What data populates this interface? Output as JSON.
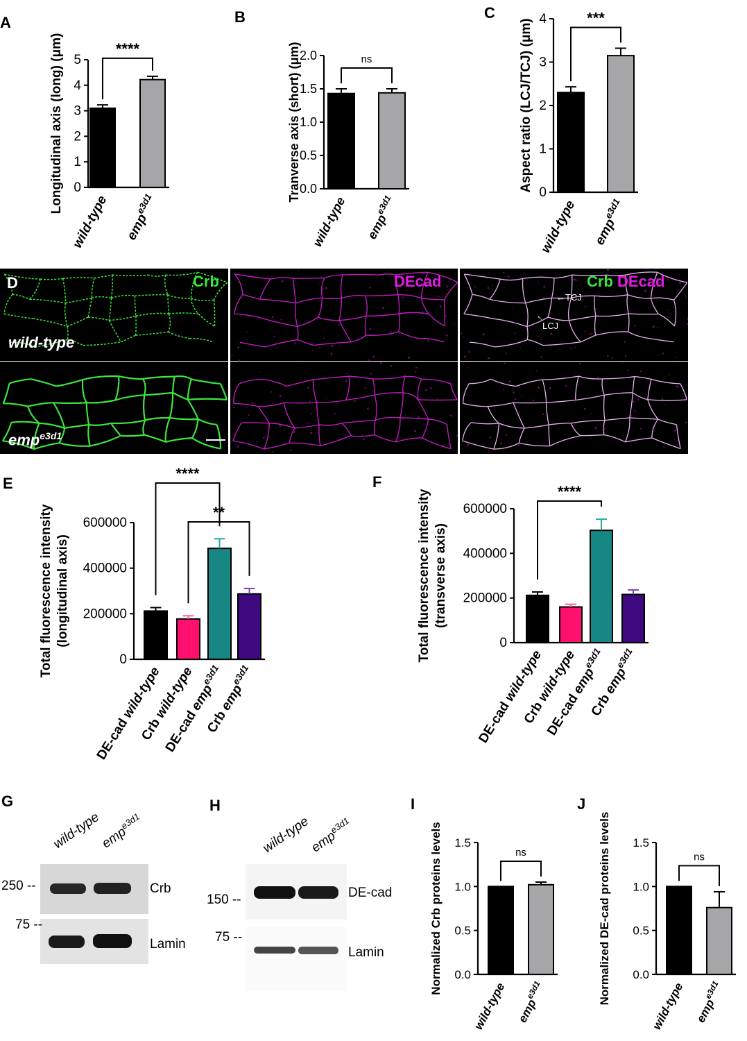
{
  "panel_letters": {
    "A": "A",
    "B": "B",
    "C": "C",
    "D": "D",
    "E": "E",
    "F": "F",
    "G": "G",
    "H": "H",
    "I": "I",
    "J": "J"
  },
  "colors": {
    "black": "#000000",
    "grey": "#a6a6a8",
    "pink": "#ff0f6e",
    "teal": "#168783",
    "purple": "#3e087f",
    "crb_green": "#3ce63c",
    "decad_magenta": "#e619e6",
    "errbar_black": "#000000",
    "errbar_pink": "#ff5c9a",
    "errbar_teal": "#2aa79f",
    "errbar_purple": "#7b43b8"
  },
  "chart_data": [
    {
      "id": "A",
      "type": "bar",
      "ylabel": "Longitudinal axis (long) (μm)",
      "ylim": [
        0,
        5
      ],
      "yticks": [
        "0",
        "1",
        "2",
        "3",
        "4",
        "5"
      ],
      "categories": [
        {
          "name": "wild-type",
          "sup": ""
        },
        {
          "name": "emp",
          "sup": "e3d1"
        }
      ],
      "values": [
        3.1,
        4.22
      ],
      "errors": [
        0.13,
        0.13
      ],
      "colors": [
        "black",
        "grey"
      ],
      "err_colors": [
        "errbar_black",
        "errbar_black"
      ],
      "significance": [
        {
          "from": 0,
          "to": 1,
          "label": "****",
          "big": true
        }
      ]
    },
    {
      "id": "B",
      "type": "bar",
      "ylabel": "Tranverse axis (short) (μm)",
      "ylim": [
        0,
        2
      ],
      "yticks": [
        "0.0",
        "0.5",
        "1.0",
        "1.5",
        "2.0"
      ],
      "categories": [
        {
          "name": "wild-type",
          "sup": ""
        },
        {
          "name": "emp",
          "sup": "e3d1"
        }
      ],
      "values": [
        1.43,
        1.44
      ],
      "errors": [
        0.07,
        0.06
      ],
      "colors": [
        "black",
        "grey"
      ],
      "err_colors": [
        "errbar_black",
        "errbar_black"
      ],
      "significance": [
        {
          "from": 0,
          "to": 1,
          "label": "ns",
          "big": false
        }
      ]
    },
    {
      "id": "C",
      "type": "bar",
      "ylabel": "Aspect ratio (LCJ/TCJ) (μm)",
      "ylim": [
        0,
        4
      ],
      "yticks": [
        "0",
        "1",
        "2",
        "3",
        "4"
      ],
      "categories": [
        {
          "name": "wild-type",
          "sup": ""
        },
        {
          "name": "emp",
          "sup": "e3d1"
        }
      ],
      "values": [
        2.3,
        3.15
      ],
      "errors": [
        0.13,
        0.17
      ],
      "colors": [
        "black",
        "grey"
      ],
      "err_colors": [
        "errbar_black",
        "errbar_black"
      ],
      "significance": [
        {
          "from": 0,
          "to": 1,
          "label": "***",
          "big": true
        }
      ]
    },
    {
      "id": "E",
      "type": "bar",
      "ylabel": "Total fluorescence intensity",
      "ylabel2": "(longitudinal axis)",
      "ylim": [
        0,
        600000
      ],
      "yticks": [
        "0",
        "200000",
        "400000",
        "600000"
      ],
      "categories": [
        {
          "name": "DE-cad ",
          "italic": "wild-type",
          "sup": ""
        },
        {
          "name": "Crb ",
          "italic": "wild-type",
          "sup": ""
        },
        {
          "name": "DE-cad ",
          "italic": "emp",
          "sup": "e3d1"
        },
        {
          "name": "Crb ",
          "italic": "emp",
          "sup": "e3d1"
        }
      ],
      "values": [
        212000,
        177000,
        487000,
        287000
      ],
      "errors": [
        15000,
        14000,
        42000,
        24000
      ],
      "colors": [
        "black",
        "pink",
        "teal",
        "purple"
      ],
      "err_colors": [
        "errbar_black",
        "errbar_pink",
        "errbar_teal",
        "errbar_purple"
      ],
      "significance": [
        {
          "from": 0,
          "to": 2,
          "label": "****",
          "big": true
        },
        {
          "from": 1,
          "to": 3,
          "label": "**",
          "big": true
        }
      ]
    },
    {
      "id": "F",
      "type": "bar",
      "ylabel": "Total fluorescence intensity",
      "ylabel2": "(transverse axis)",
      "ylim": [
        0,
        600000
      ],
      "yticks": [
        "0",
        "200000",
        "400000",
        "600000"
      ],
      "categories": [
        {
          "name": "DE-cad ",
          "italic": "wild-type",
          "sup": ""
        },
        {
          "name": "Crb ",
          "italic": "wild-type",
          "sup": ""
        },
        {
          "name": "DE-cad ",
          "italic": "emp",
          "sup": "e3d1"
        },
        {
          "name": "Crb ",
          "italic": "emp",
          "sup": "e3d1"
        }
      ],
      "values": [
        212000,
        160000,
        503000,
        216000
      ],
      "errors": [
        15000,
        12000,
        50000,
        20000
      ],
      "colors": [
        "black",
        "pink",
        "teal",
        "purple"
      ],
      "err_colors": [
        "errbar_black",
        "errbar_pink",
        "errbar_teal",
        "errbar_purple"
      ],
      "significance": [
        {
          "from": 0,
          "to": 2,
          "label": "****",
          "big": true
        }
      ]
    },
    {
      "id": "I",
      "type": "bar",
      "ylabel": "Normalized Crb proteins levels",
      "ylim": [
        0,
        1.5
      ],
      "yticks": [
        "0.0",
        "0.5",
        "1.0",
        "1.5"
      ],
      "categories": [
        {
          "name": "wild-type",
          "sup": ""
        },
        {
          "name": "emp",
          "sup": "e3d1"
        }
      ],
      "values": [
        1.0,
        1.02
      ],
      "errors": [
        0.0,
        0.03
      ],
      "colors": [
        "black",
        "grey"
      ],
      "err_colors": [
        "errbar_black",
        "errbar_black"
      ],
      "significance": [
        {
          "from": 0,
          "to": 1,
          "label": "ns",
          "big": false
        }
      ]
    },
    {
      "id": "J",
      "type": "bar",
      "ylabel": "Normalized DE-cad proteins levels",
      "ylim": [
        0,
        1.5
      ],
      "yticks": [
        "0.0",
        "0.5",
        "1.0",
        "1.5"
      ],
      "categories": [
        {
          "name": "wild-type",
          "sup": ""
        },
        {
          "name": "emp",
          "sup": "e3d1"
        }
      ],
      "values": [
        1.0,
        0.76
      ],
      "errors": [
        0.0,
        0.18
      ],
      "colors": [
        "black",
        "grey"
      ],
      "err_colors": [
        "errbar_black",
        "errbar_black"
      ],
      "significance": [
        {
          "from": 0,
          "to": 1,
          "label": "ns",
          "big": false
        }
      ]
    }
  ],
  "microscopy": {
    "crb_label": "Crb",
    "decad_label": "DEcad",
    "merge_label_crb": "Crb",
    "merge_label_decad": "DEcad",
    "wild_type_label": "wild-type",
    "emp_label": "emp",
    "emp_sup": "e3d1",
    "tcj_label": "TCJ",
    "lcj_label": "LCJ"
  },
  "blots": {
    "G": {
      "lane1": "wild-type",
      "lane2": "emp",
      "lane2_sup": "e3d1",
      "marker_top": "250 --",
      "marker_bottom": "75 --",
      "band_top": "Crb",
      "band_bottom": "Lamin"
    },
    "H": {
      "lane1": "wild-type",
      "lane2": "emp",
      "lane2_sup": "e3d1",
      "marker_top": "150 --",
      "marker_bottom": "75 --",
      "band_top": "DE-cad",
      "band_bottom": "Lamin"
    }
  }
}
